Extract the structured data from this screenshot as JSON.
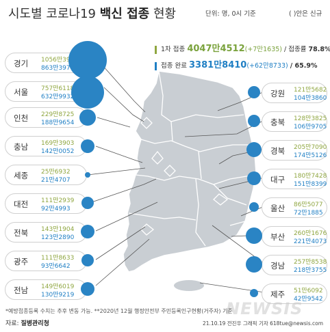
{
  "title": {
    "main": "시도별 코로나19 ",
    "bold": "백신 접종",
    "tail": " 현황"
  },
  "unit": "단위: 명, 0시 기준",
  "note_new": "( )안은 신규",
  "stat1": {
    "label": "1차 접종",
    "value": "4047만4512",
    "new": "(+7만1635)",
    "rate_label": "/ 접종률",
    "rate": "78.8%"
  },
  "stat2": {
    "label": "접종 완료",
    "value": "3381만8410",
    "new": "(+62만8733)",
    "rate": "/ 65.9%"
  },
  "colors": {
    "first_dose": "#8fa640",
    "complete": "#1f7fc4",
    "map": "#c9ced3",
    "bubble": "#2a84c4"
  },
  "regions_left": [
    {
      "name": "경기",
      "v1": "1056만3931",
      "v2": "863만3976"
    },
    {
      "name": "서울",
      "v1": "757만6118",
      "v2": "632만9932"
    },
    {
      "name": "인천",
      "v1": "229만8725",
      "v2": "188만9654"
    },
    {
      "name": "충남",
      "v1": "169만3903",
      "v2": "142만0052"
    },
    {
      "name": "세종",
      "v1": "25만6932",
      "v2": "21만4707"
    },
    {
      "name": "대전",
      "v1": "111만2939",
      "v2": "92만4993"
    },
    {
      "name": "전북",
      "v1": "143만1904",
      "v2": "123만2890"
    },
    {
      "name": "광주",
      "v1": "111만8633",
      "v2": "93만6642"
    },
    {
      "name": "전남",
      "v1": "149만6019",
      "v2": "130만9219"
    }
  ],
  "regions_right": [
    {
      "name": "강원",
      "v1": "121만5682",
      "v2": "104만3860"
    },
    {
      "name": "충북",
      "v1": "128만3825",
      "v2": "106만9705"
    },
    {
      "name": "경북",
      "v1": "205만7090",
      "v2": "174만5126"
    },
    {
      "name": "대구",
      "v1": "180만7428",
      "v2": "151만8399"
    },
    {
      "name": "울산",
      "v1": "86만5077",
      "v2": "72만1885"
    },
    {
      "name": "부산",
      "v1": "260만1676",
      "v2": "221만4073"
    },
    {
      "name": "경남",
      "v1": "257만8538",
      "v2": "218만3755"
    },
    {
      "name": "제주",
      "v1": "51만6092",
      "v2": "42만9542"
    }
  ],
  "footnote": "*예방접종등록 수치는 추후 변동 가능.  **2020년 12월 행정안전부 주민등록인구현황(거주자) 기준",
  "source": {
    "label": "자료: ",
    "name": "질병관리청"
  },
  "credit": "21.10.19 전진우 그래픽 기자 618tue@newsis.com",
  "watermark": "NEWSIS"
}
